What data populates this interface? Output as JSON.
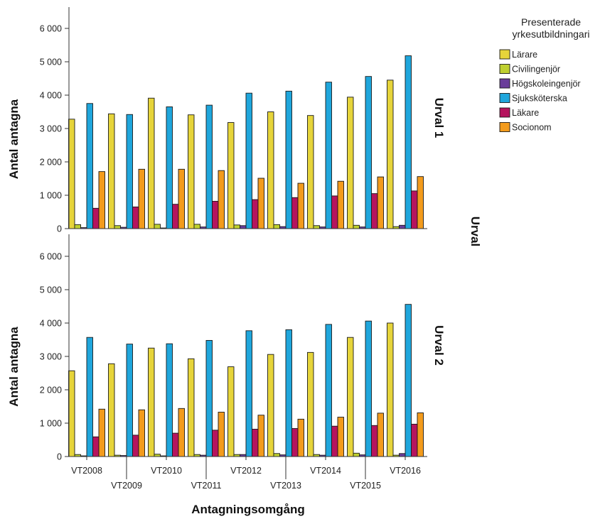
{
  "chart_data": {
    "type": "bar",
    "categories": [
      "VT2008",
      "VT2009",
      "VT2010",
      "VT2011",
      "VT2012",
      "VT2013",
      "VT2014",
      "VT2015",
      "VT2016"
    ],
    "xlabel": "Antagningsomgång",
    "ylabel": "Antal antagna",
    "ylim": [
      0,
      6500
    ],
    "yticks": [
      0,
      1000,
      2000,
      3000,
      4000,
      5000,
      6000
    ],
    "ytick_labels": [
      "0",
      "1 000",
      "2 000",
      "3 000",
      "4 000",
      "5 000",
      "6 000"
    ],
    "row_facet_title": "Urval",
    "legend": {
      "title_lines": [
        "Presenterade",
        "yrkesutbildningari"
      ],
      "placement": "top-right"
    },
    "series": [
      {
        "name": "Lärare",
        "color": "#e6d43a"
      },
      {
        "name": "Civilingenjör",
        "color": "#bfd030"
      },
      {
        "name": "Högskoleingenjör",
        "color": "#6a3d9a"
      },
      {
        "name": "Sjuksköterska",
        "color": "#1fa6dc"
      },
      {
        "name": "Läkare",
        "color": "#b5145e"
      },
      {
        "name": "Socionom",
        "color": "#f39b1c"
      }
    ],
    "panels": [
      {
        "facet_label": "Urval 1",
        "values": [
          [
            3280,
            3440,
            3910,
            3410,
            3180,
            3500,
            3390,
            3940,
            4450
          ],
          [
            120,
            90,
            130,
            130,
            110,
            120,
            90,
            100,
            60
          ],
          [
            30,
            40,
            20,
            50,
            90,
            60,
            50,
            50,
            100
          ],
          [
            3750,
            3420,
            3650,
            3700,
            4060,
            4120,
            4390,
            4560,
            5180
          ],
          [
            610,
            650,
            730,
            820,
            870,
            930,
            980,
            1050,
            1130
          ],
          [
            1710,
            1780,
            1780,
            1740,
            1510,
            1360,
            1420,
            1550,
            1560
          ]
        ]
      },
      {
        "facet_label": "Urval 2",
        "values": [
          [
            2570,
            2780,
            3250,
            2930,
            2690,
            3060,
            3120,
            3570,
            4000
          ],
          [
            60,
            40,
            70,
            60,
            60,
            90,
            60,
            100,
            40
          ],
          [
            20,
            30,
            20,
            40,
            60,
            50,
            40,
            50,
            90
          ],
          [
            3570,
            3370,
            3380,
            3480,
            3770,
            3800,
            3960,
            4060,
            4560
          ],
          [
            590,
            640,
            700,
            790,
            820,
            840,
            910,
            930,
            970
          ],
          [
            1420,
            1400,
            1440,
            1330,
            1240,
            1120,
            1180,
            1300,
            1310
          ]
        ]
      }
    ]
  }
}
